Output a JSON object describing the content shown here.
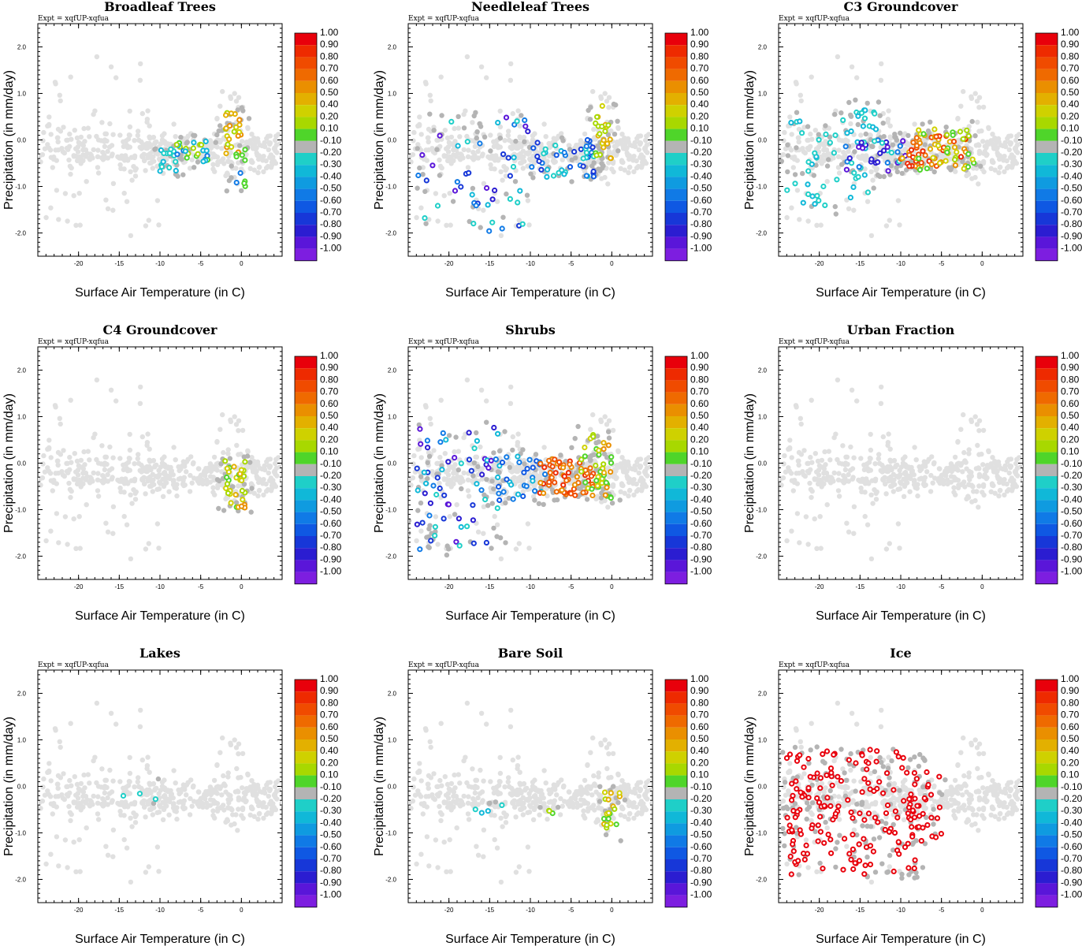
{
  "figure": {
    "xlabel": "Surface Air Temperature (in C)",
    "ylabel": "Precipitation (in mm/day)",
    "expt_label": "Expt = xqfUP-xqfua",
    "xlim": [
      -25,
      5
    ],
    "ylim": [
      -2.5,
      2.5
    ],
    "xticks": [
      "-20",
      "-15",
      "-10",
      "-5",
      "0"
    ],
    "yticks": [
      "2.0",
      "1.0",
      "0.0",
      "-1.0",
      "-2.0"
    ],
    "colorbar": {
      "labels": [
        "1.00",
        "0.90",
        "0.80",
        "0.70",
        "0.60",
        "0.50",
        "0.40",
        "0.20",
        "0.10",
        "-0.10",
        "-0.20",
        "-0.30",
        "-0.40",
        "-0.50",
        "-0.60",
        "-0.70",
        "-0.80",
        "-0.90",
        "-1.00"
      ],
      "colors": [
        "#e8000b",
        "#ee2a00",
        "#f04b00",
        "#ef6a00",
        "#ea8f00",
        "#e3b000",
        "#cfd100",
        "#a8d800",
        "#4fd52a",
        "#b4b4b4",
        "#1fcfc8",
        "#10b8d8",
        "#0f9be0",
        "#107ae6",
        "#0f58e3",
        "#1737d8",
        "#2b1dd1",
        "#5a16d9",
        "#7d1ee0"
      ]
    },
    "background_color": "#e0e0e0",
    "nonzero_color": "#b4b4b4"
  },
  "chart_data": [
    {
      "title": "Broadleaf Trees",
      "type": "scatter",
      "regions": [
        {
          "x": [
            -10,
            -8
          ],
          "y": [
            -0.7,
            -0.2
          ],
          "n": 14,
          "v": [
            -0.2,
            -0.3
          ]
        },
        {
          "x": [
            -8,
            -4
          ],
          "y": [
            -0.5,
            0.0
          ],
          "n": 24,
          "v": [
            -0.5,
            -0.3,
            0.1,
            0.2
          ]
        },
        {
          "x": [
            -2,
            0
          ],
          "y": [
            -0.3,
            0.6
          ],
          "n": 22,
          "v": [
            0.3,
            0.4,
            0.5,
            0.6
          ]
        },
        {
          "x": [
            -1,
            0.5
          ],
          "y": [
            -1.0,
            -0.2
          ],
          "n": 10,
          "v": [
            0.1,
            0.2,
            -0.5
          ]
        }
      ]
    },
    {
      "title": "Needleleaf Trees",
      "type": "scatter",
      "regions": [
        {
          "x": [
            -24,
            -10
          ],
          "y": [
            -2.0,
            0.5
          ],
          "n": 45,
          "v": [
            -0.9,
            -0.8,
            -0.7,
            -0.3,
            -0.2,
            -0.5
          ]
        },
        {
          "x": [
            -10,
            -2
          ],
          "y": [
            -0.8,
            0.0
          ],
          "n": 45,
          "v": [
            -0.6,
            -0.5,
            -0.3,
            -0.2,
            -0.7
          ]
        },
        {
          "x": [
            -2,
            0
          ],
          "y": [
            -0.4,
            0.8
          ],
          "n": 22,
          "v": [
            0.3,
            0.4,
            0.5,
            0.2,
            0.1
          ]
        }
      ]
    },
    {
      "title": "C3 Groundcover",
      "type": "scatter",
      "regions": [
        {
          "x": [
            -24,
            -14
          ],
          "y": [
            -1.5,
            0.5
          ],
          "n": 40,
          "v": [
            -0.2,
            -0.3
          ]
        },
        {
          "x": [
            -17,
            -9
          ],
          "y": [
            -0.7,
            0.0
          ],
          "n": 35,
          "v": [
            -0.8,
            -0.9,
            -0.5,
            -0.2
          ]
        },
        {
          "x": [
            -10,
            -2
          ],
          "y": [
            -0.6,
            0.1
          ],
          "n": 55,
          "v": [
            0.8,
            0.7,
            0.6,
            0.9,
            0.5
          ]
        },
        {
          "x": [
            -8,
            -1
          ],
          "y": [
            -0.7,
            0.3
          ],
          "n": 30,
          "v": [
            0.1,
            0.2,
            0.4
          ]
        },
        {
          "x": [
            -16,
            -13
          ],
          "y": [
            0.2,
            0.8
          ],
          "n": 12,
          "v": [
            -0.2,
            -0.3
          ]
        }
      ]
    },
    {
      "title": "C4 Groundcover",
      "type": "scatter",
      "regions": [
        {
          "x": [
            -2,
            0.5
          ],
          "y": [
            -1.0,
            0.1
          ],
          "n": 30,
          "v": [
            0.1,
            0.2,
            0.4,
            0.5
          ]
        },
        {
          "x": [
            0,
            1
          ],
          "y": [
            -1.0,
            -0.8
          ],
          "n": 3,
          "v": [
            0.6,
            -0.5
          ]
        }
      ]
    },
    {
      "title": "Shrubs",
      "type": "scatter",
      "regions": [
        {
          "x": [
            -24,
            -14
          ],
          "y": [
            -1.9,
            0.8
          ],
          "n": 60,
          "v": [
            -0.9,
            -0.8,
            -0.7,
            -0.5,
            -0.3,
            -0.2
          ]
        },
        {
          "x": [
            -14,
            -8
          ],
          "y": [
            -0.8,
            0.2
          ],
          "n": 30,
          "v": [
            -0.5,
            -0.6,
            -0.3
          ]
        },
        {
          "x": [
            -9,
            -2
          ],
          "y": [
            -0.7,
            0.1
          ],
          "n": 60,
          "v": [
            0.9,
            0.8,
            0.7,
            0.6
          ]
        },
        {
          "x": [
            -4,
            -1
          ],
          "y": [
            -0.6,
            0.7
          ],
          "n": 25,
          "v": [
            0.1,
            0.2,
            0.4
          ]
        },
        {
          "x": [
            -1,
            0
          ],
          "y": [
            -0.8,
            0.5
          ],
          "n": 15,
          "v": [
            0.6,
            0.5,
            0.1
          ]
        }
      ]
    },
    {
      "title": "Urban Fraction",
      "type": "scatter",
      "regions": []
    },
    {
      "title": "Lakes",
      "type": "scatter",
      "regions": [
        {
          "x": [
            -17,
            -10
          ],
          "y": [
            -0.3,
            0.1
          ],
          "n": 3,
          "v": [
            -0.2,
            -0.3
          ]
        }
      ]
    },
    {
      "title": "Bare Soil",
      "type": "scatter",
      "regions": [
        {
          "x": [
            -17,
            -13
          ],
          "y": [
            -0.6,
            -0.3
          ],
          "n": 4,
          "v": [
            -0.2,
            -0.3
          ]
        },
        {
          "x": [
            -8,
            -6
          ],
          "y": [
            -0.6,
            -0.5
          ],
          "n": 3,
          "v": [
            0.1,
            0.2
          ]
        },
        {
          "x": [
            -1,
            1
          ],
          "y": [
            -1.1,
            -0.1
          ],
          "n": 18,
          "v": [
            0.1,
            0.2,
            0.4,
            0.5
          ]
        }
      ]
    },
    {
      "title": "Ice",
      "type": "scatter",
      "regions": [
        {
          "x": [
            -24,
            -8
          ],
          "y": [
            -1.9,
            0.8
          ],
          "n": 170,
          "v": [
            1.0
          ]
        },
        {
          "x": [
            -9,
            -5
          ],
          "y": [
            -1.2,
            0.5
          ],
          "n": 25,
          "v": [
            1.0
          ]
        }
      ]
    }
  ]
}
